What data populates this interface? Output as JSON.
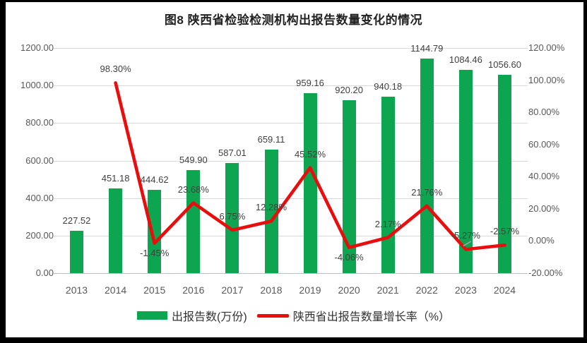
{
  "title": "图8  陕西省检验检测机构出报告数量变化的情况",
  "colors": {
    "bar": "#0ea551",
    "line": "#e90d0d",
    "grid": "#d9d9d9",
    "axis_line": "#bfbfbf",
    "tick_text": "#595959",
    "data_label": "#404040",
    "leader": "#a6a6a6",
    "frame": "#000000"
  },
  "legend": {
    "bar_label": "出报告数(万份)",
    "line_label": "陕西省出报告数量增长率（%）"
  },
  "chart_data": {
    "type": "combo",
    "title": "图8  陕西省检验检测机构出报告数量变化的情况",
    "categories": [
      "2013",
      "2014",
      "2015",
      "2016",
      "2017",
      "2018",
      "2019",
      "2020",
      "2021",
      "2022",
      "2023",
      "2024"
    ],
    "series": [
      {
        "name": "出报告数(万份)",
        "type": "bar",
        "axis": "left",
        "values": [
          227.52,
          451.18,
          444.62,
          549.9,
          587.01,
          659.11,
          959.16,
          920.2,
          940.18,
          1144.79,
          1084.46,
          1056.6
        ],
        "labels": [
          "227.52",
          "451.18",
          "444.62",
          "549.90",
          "587.01",
          "659.11",
          "959.16",
          "920.20",
          "940.18",
          "1144.79",
          "1084.46",
          "1056.60"
        ]
      },
      {
        "name": "陕西省出报告数量增长率（%）",
        "type": "line",
        "axis": "right",
        "values": [
          null,
          98.3,
          -1.45,
          23.68,
          6.75,
          12.28,
          45.52,
          -4.06,
          2.17,
          21.76,
          -5.27,
          -2.57
        ],
        "labels": [
          null,
          "98.30%",
          "-1.45%",
          "23.68%",
          "6.75%",
          "12.28%",
          "45.52%",
          "-4.06%",
          "2.17%",
          "21.76%",
          "-5.27%",
          "-2.57%"
        ],
        "label_side": [
          null,
          "above",
          "below",
          "above",
          "above",
          "above",
          "above",
          "below",
          "above",
          "above",
          "above-leader",
          "above"
        ]
      }
    ],
    "left_axis": {
      "min": 0,
      "max": 1200,
      "step": 200,
      "tick_labels": [
        "0.00",
        "200.00",
        "400.00",
        "600.00",
        "800.00",
        "1000.00",
        "1200.00"
      ]
    },
    "right_axis": {
      "min": -20,
      "max": 120,
      "step": 20,
      "tick_labels": [
        "-20.00%",
        "0.00%",
        "20.00%",
        "40.00%",
        "60.00%",
        "80.00%",
        "100.00%",
        "120.00%"
      ]
    },
    "grid": true,
    "legend_position": "bottom"
  }
}
